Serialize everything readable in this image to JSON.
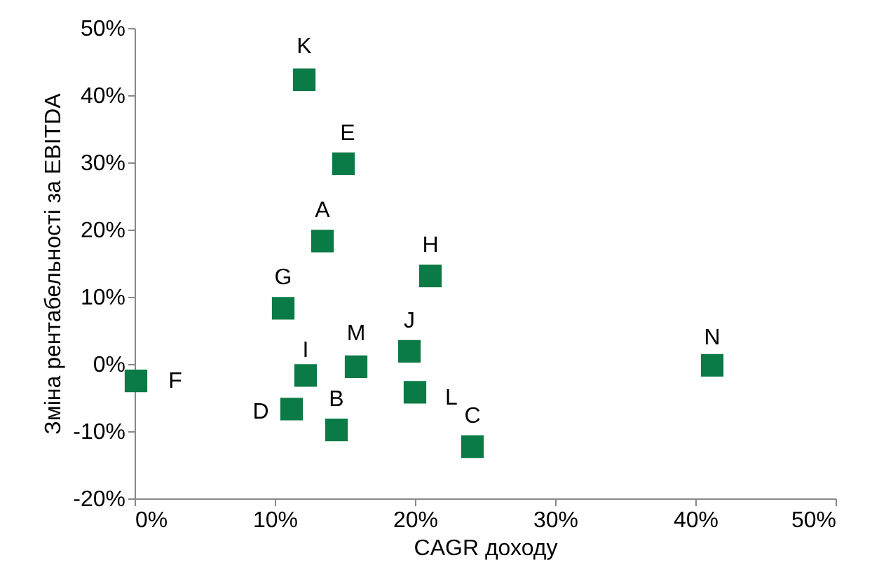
{
  "chart_data": {
    "type": "scatter",
    "xlabel": "CAGR доходу",
    "ylabel": "Зміна рентабельності за EBITDA",
    "x": [
      12.1,
      14.9,
      13.4,
      21.1,
      10.6,
      19.6,
      15.8,
      12.2,
      41.2,
      0.1,
      20.0,
      11.2,
      14.4,
      24.1
    ],
    "series": [
      {
        "color": "#0a7a46",
        "values": [
          42.3,
          29.8,
          18.3,
          13.1,
          8.3,
          1.9,
          -0.4,
          -1.7,
          -0.2,
          -2.5,
          -4.2,
          -6.7,
          -9.8,
          -12.3
        ]
      }
    ],
    "annotations": [
      {
        "text": "K",
        "x": 12.1,
        "y": 42.3
      },
      {
        "text": "E",
        "x": 14.9,
        "y": 29.8
      },
      {
        "text": "A",
        "x": 13.4,
        "y": 18.3
      },
      {
        "text": "H",
        "x": 21.1,
        "y": 13.1
      },
      {
        "text": "G",
        "x": 10.6,
        "y": 8.3
      },
      {
        "text": "J",
        "x": 19.6,
        "y": 1.9
      },
      {
        "text": "M",
        "x": 15.8,
        "y": -0.4
      },
      {
        "text": "I",
        "x": 12.2,
        "y": -1.7
      },
      {
        "text": "N",
        "x": 41.2,
        "y": -0.2
      },
      {
        "text": "F",
        "x": 0.1,
        "y": -2.5
      },
      {
        "text": "L",
        "x": 20.0,
        "y": -4.2
      },
      {
        "text": "D",
        "x": 11.2,
        "y": -6.7
      },
      {
        "text": "B",
        "x": 14.4,
        "y": -9.8
      },
      {
        "text": "C",
        "x": 24.1,
        "y": -12.3
      }
    ],
    "xlim": [
      0,
      50
    ],
    "xticks": [
      {
        "value": 0,
        "label": "0%"
      },
      {
        "value": 10,
        "label": "10%"
      },
      {
        "value": 20,
        "label": "20%"
      },
      {
        "value": 30,
        "label": "30%"
      },
      {
        "value": 40,
        "label": "40%"
      },
      {
        "value": 50,
        "label": "50%"
      }
    ],
    "ylim": [
      -20,
      50
    ],
    "yticks": [
      {
        "value": -20,
        "label": "-20%"
      },
      {
        "value": -10,
        "label": "-10%"
      },
      {
        "value": 0,
        "label": "0%"
      },
      {
        "value": 10,
        "label": "10%"
      },
      {
        "value": 20,
        "label": "20%"
      },
      {
        "value": 30,
        "label": "30%"
      },
      {
        "value": 40,
        "label": "40%"
      },
      {
        "value": 50,
        "label": "50%"
      }
    ],
    "marker": "square",
    "grid": false,
    "legend": false
  }
}
